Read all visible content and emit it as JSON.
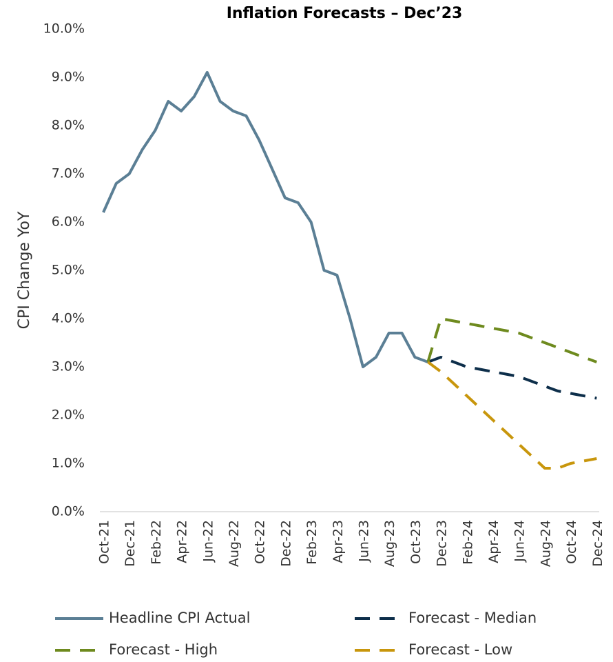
{
  "chart_data": {
    "type": "line",
    "title": "Inflation Forecasts – Dec’23",
    "y_label": "CPI Change YoY",
    "categories": [
      "Oct-21",
      null,
      "Dec-21",
      null,
      "Feb-22",
      null,
      "Apr-22",
      null,
      "Jun-22",
      null,
      "Aug-22",
      null,
      "Oct-22",
      null,
      "Dec-22",
      null,
      "Feb-23",
      null,
      "Apr-23",
      null,
      "Jun-23",
      null,
      "Aug-23",
      null,
      "Oct-23",
      null,
      "Dec-23",
      null,
      "Feb-24",
      null,
      "Apr-24",
      null,
      "Jun-24",
      null,
      "Aug-24",
      null,
      "Oct-24",
      null,
      "Dec-24"
    ],
    "series": [
      {
        "name": "Headline CPI Actual",
        "color": "#5b7f95",
        "dashed": false,
        "values": [
          6.2,
          6.8,
          7.0,
          7.5,
          7.9,
          8.5,
          8.3,
          8.6,
          9.1,
          8.5,
          8.3,
          8.2,
          7.7,
          7.1,
          6.5,
          6.4,
          6.0,
          5.0,
          4.9,
          4.0,
          3.0,
          3.2,
          3.7,
          3.7,
          3.2,
          3.1,
          null,
          null,
          null,
          null,
          null,
          null,
          null,
          null,
          null,
          null,
          null,
          null,
          null
        ]
      },
      {
        "name": "Forecast - Median",
        "color": "#0d2e4a",
        "dashed": true,
        "values": [
          null,
          null,
          null,
          null,
          null,
          null,
          null,
          null,
          null,
          null,
          null,
          null,
          null,
          null,
          null,
          null,
          null,
          null,
          null,
          null,
          null,
          null,
          null,
          null,
          null,
          3.1,
          3.2,
          3.1,
          3.0,
          2.95,
          2.9,
          2.85,
          2.8,
          2.7,
          2.6,
          2.5,
          2.45,
          2.4,
          2.35
        ]
      },
      {
        "name": "Forecast - High",
        "color": "#6e8a1e",
        "dashed": true,
        "values": [
          null,
          null,
          null,
          null,
          null,
          null,
          null,
          null,
          null,
          null,
          null,
          null,
          null,
          null,
          null,
          null,
          null,
          null,
          null,
          null,
          null,
          null,
          null,
          null,
          null,
          3.1,
          4.0,
          3.95,
          3.9,
          3.85,
          3.8,
          3.75,
          3.7,
          3.6,
          3.5,
          3.4,
          3.3,
          3.2,
          3.1
        ]
      },
      {
        "name": "Forecast - Low",
        "color": "#c8960c",
        "dashed": true,
        "values": [
          null,
          null,
          null,
          null,
          null,
          null,
          null,
          null,
          null,
          null,
          null,
          null,
          null,
          null,
          null,
          null,
          null,
          null,
          null,
          null,
          null,
          null,
          null,
          null,
          null,
          3.1,
          2.9,
          2.65,
          2.4,
          2.15,
          1.9,
          1.65,
          1.4,
          1.15,
          0.9,
          0.9,
          1.0,
          1.05,
          1.1
        ]
      }
    ],
    "ylim": [
      0,
      10
    ],
    "yticks": [
      {
        "value": 0,
        "label": "0.0%"
      },
      {
        "value": 1,
        "label": "1.0%"
      },
      {
        "value": 2,
        "label": "2.0%"
      },
      {
        "value": 3,
        "label": "3.0%"
      },
      {
        "value": 4,
        "label": "4.0%"
      },
      {
        "value": 5,
        "label": "5.0%"
      },
      {
        "value": 6,
        "label": "6.0%"
      },
      {
        "value": 7,
        "label": "7.0%"
      },
      {
        "value": 8,
        "label": "8.0%"
      },
      {
        "value": 9,
        "label": "9.0%"
      },
      {
        "value": 10,
        "label": "10.0%"
      }
    ],
    "grid": false,
    "legend": "bottom"
  }
}
